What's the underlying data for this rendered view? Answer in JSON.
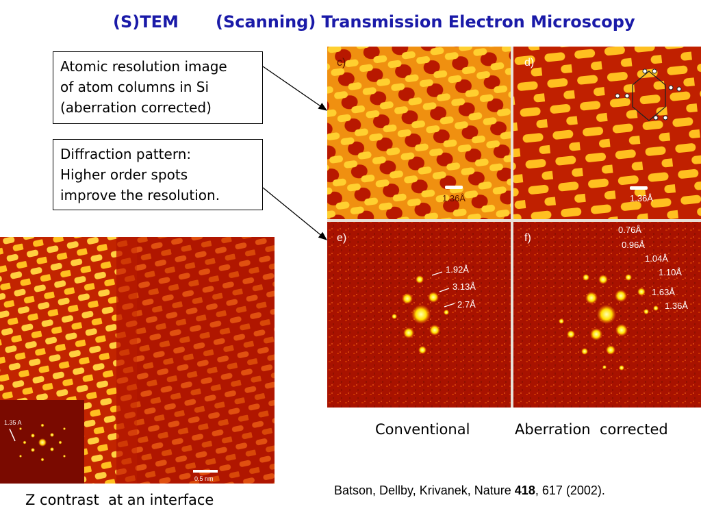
{
  "slide": {
    "title_short": "(S)TEM",
    "title_full": "(Scanning) Transmission Electron Microscopy"
  },
  "callouts": {
    "atomic": [
      "Atomic resolution image",
      "of atom columns in Si",
      "(aberration corrected)"
    ],
    "diffraction": [
      "Diffraction pattern:",
      "Higher order spots",
      "improve the resolution."
    ]
  },
  "figure": {
    "panel_labels": [
      "c)",
      "d)",
      "e)",
      "f)"
    ],
    "scale_c": "1.36Å",
    "scale_d": "1.36Å",
    "spots_e": [
      "1.92Å",
      "3.13Å",
      "2.7Å"
    ],
    "spots_f": [
      "0.76Å",
      "0.96Å",
      "1.04Å",
      "1.10Å",
      "1.63Å",
      "1.36Å"
    ],
    "caption_conventional": "Conventional",
    "caption_corrected": "Aberration  corrected"
  },
  "interface_image": {
    "inset_label": "1.35 A",
    "scale_bar": "0.5 nm",
    "caption": "Z contrast  at an interface"
  },
  "citation": {
    "authors": "Batson, Dellby, Krivanek, Nature ",
    "volume": "418",
    "rest": ", 617 (2002)."
  },
  "colors": {
    "title": "#1a1aa8",
    "image_dark": "#a01000",
    "image_bright": "#ffe040"
  }
}
